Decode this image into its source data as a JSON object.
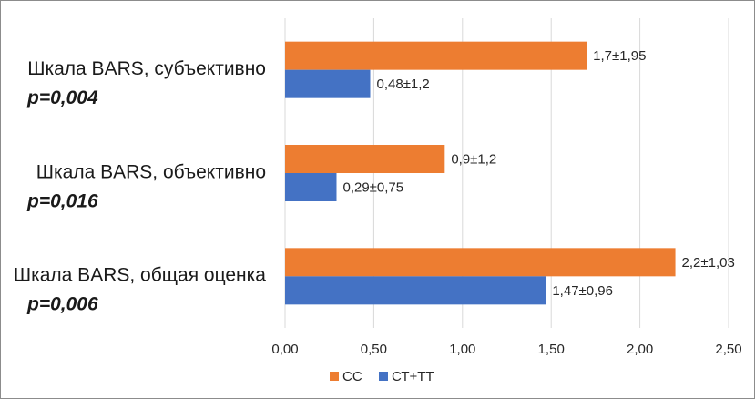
{
  "chart_data": {
    "type": "bar",
    "orientation": "horizontal",
    "categories": [
      "Шкала BARS, субъективно",
      "Шкала BARS, объективно",
      "Шкала BARS, общая оценка"
    ],
    "p_values": [
      "p=0,004",
      "p=0,016",
      "p=0,006"
    ],
    "series": [
      {
        "name": "СС",
        "color": "#ed7d31",
        "values": [
          1.7,
          0.9,
          2.2
        ],
        "labels": [
          "1,7±1,95",
          "0,9±1,2",
          "2,2±1,03"
        ]
      },
      {
        "name": "СТ+ТТ",
        "color": "#4472c4",
        "values": [
          0.48,
          0.29,
          1.47
        ],
        "labels": [
          "0,48±1,2",
          "0,29±0,75",
          "1,47±0,96"
        ]
      }
    ],
    "xlim": [
      0,
      2.5
    ],
    "xticks": [
      "0,00",
      "0,50",
      "1,00",
      "1,50",
      "2,00",
      "2,50"
    ],
    "grid": "vertical",
    "legend_position": "bottom"
  }
}
